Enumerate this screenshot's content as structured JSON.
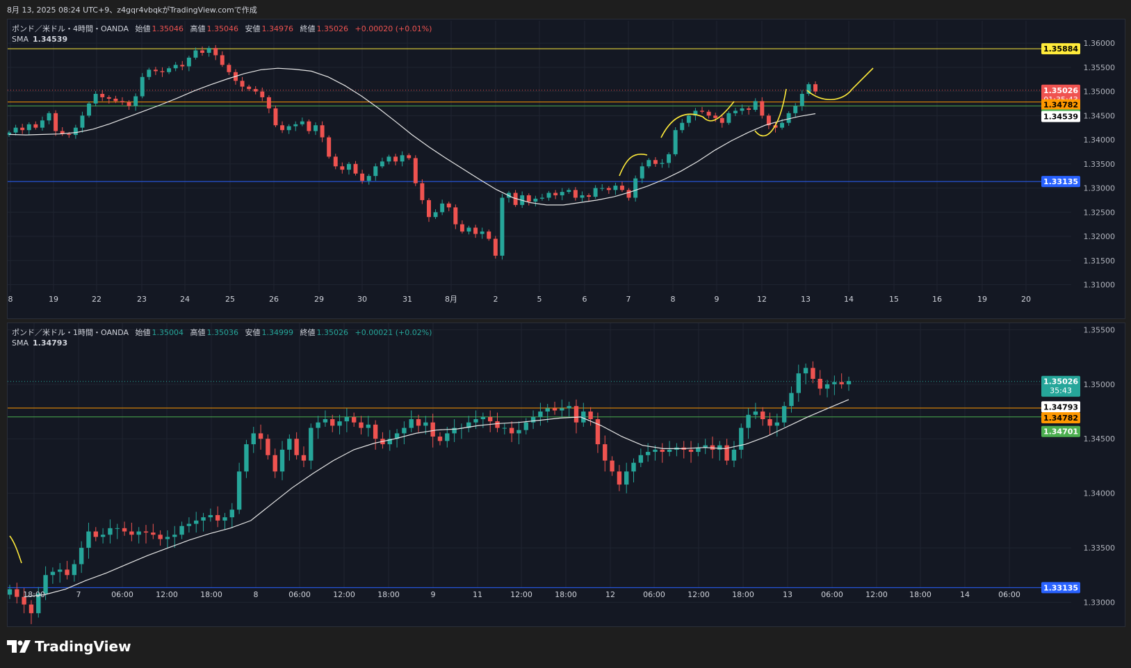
{
  "header": {
    "caption": "8月 13, 2025 08:24 UTC+9、z4gqr4vbqkがTradingView.comで作成"
  },
  "brand": {
    "name": "TradingView"
  },
  "colors": {
    "up": "#26a69a",
    "down": "#ef5350",
    "bg": "#141823",
    "grid": "#1f2430",
    "sma": "#e8e8e8",
    "yellow": "#ffeb3b",
    "orange": "#ff9800",
    "green": "#4caf50",
    "blue": "#2962ff"
  },
  "chart_data": [
    {
      "type": "candlestick",
      "symbol_line": "ポンド／米ドル・4時間・OANDA",
      "ohlc_labels": {
        "open": "始値",
        "high": "高値",
        "low": "安値",
        "close": "終値"
      },
      "ohlc_values": {
        "open": "1.35046",
        "high": "1.35046",
        "low": "1.34976",
        "close": "1.35026",
        "change": "+0.00020 (+0.01%)"
      },
      "indicator": {
        "name": "SMA",
        "value": "1.34539"
      },
      "price_scale_ticks": [
        "1.36000",
        "1.35500",
        "1.35000",
        "1.34500",
        "1.34000",
        "1.33500",
        "1.33000",
        "1.32500",
        "1.32000",
        "1.31500",
        "1.31000"
      ],
      "ylim": [
        1.3095,
        1.3603
      ],
      "time_labels": [
        "8",
        "19",
        "22",
        "23",
        "24",
        "25",
        "26",
        "29",
        "30",
        "31",
        "8月",
        "2",
        "5",
        "6",
        "7",
        "8",
        "9",
        "12",
        "13",
        "14",
        "15",
        "16",
        "19",
        "20"
      ],
      "horizontal_lines": [
        {
          "price": 1.35884,
          "color": "#ffeb3b",
          "label": "1.35884"
        },
        {
          "price": 1.34782,
          "color": "#ff9800",
          "label": "1.34782"
        },
        {
          "price": 1.34701,
          "color": "#4caf50",
          "label": "1.34701"
        },
        {
          "price": 1.33135,
          "color": "#2962ff",
          "label": "1.33135"
        }
      ],
      "last_price": {
        "price": 1.35026,
        "label": "1.35026",
        "countdown": "01:35:43"
      },
      "sma_tag": {
        "price": 1.34539,
        "label": "1.34539"
      },
      "closes": [
        1.3415,
        1.3425,
        1.342,
        1.3432,
        1.3425,
        1.344,
        1.3455,
        1.3418,
        1.3412,
        1.341,
        1.3425,
        1.345,
        1.3475,
        1.3495,
        1.3488,
        1.3485,
        1.348,
        1.3478,
        1.347,
        1.349,
        1.353,
        1.3545,
        1.3542,
        1.354,
        1.3548,
        1.3555,
        1.3552,
        1.357,
        1.3585,
        1.358,
        1.359,
        1.3575,
        1.3555,
        1.354,
        1.3522,
        1.351,
        1.3505,
        1.35,
        1.3488,
        1.3465,
        1.343,
        1.342,
        1.3428,
        1.3432,
        1.3438,
        1.3418,
        1.343,
        1.3405,
        1.3365,
        1.3345,
        1.3338,
        1.335,
        1.333,
        1.3315,
        1.3325,
        1.3345,
        1.3355,
        1.3365,
        1.3355,
        1.3368,
        1.3362,
        1.331,
        1.3275,
        1.324,
        1.325,
        1.3268,
        1.326,
        1.3225,
        1.321,
        1.3218,
        1.3205,
        1.321,
        1.3195,
        1.316,
        1.328,
        1.329,
        1.3265,
        1.3285,
        1.3272,
        1.3278,
        1.328,
        1.329,
        1.3285,
        1.3292,
        1.3296,
        1.328,
        1.3285,
        1.3282,
        1.33,
        1.33,
        1.3296,
        1.3305,
        1.3296,
        1.328,
        1.332,
        1.3345,
        1.3358,
        1.335,
        1.3352,
        1.337,
        1.342,
        1.3435,
        1.345,
        1.346,
        1.3458,
        1.345,
        1.3445,
        1.3435,
        1.3455,
        1.346,
        1.3465,
        1.3462,
        1.348,
        1.345,
        1.343,
        1.3425,
        1.3435,
        1.3455,
        1.347,
        1.3495,
        1.3515,
        1.35
      ],
      "sma_values": [
        1.3411,
        1.341,
        1.3411,
        1.3412,
        1.3415,
        1.3422,
        1.3433,
        1.3446,
        1.3459,
        1.3472,
        1.3486,
        1.3501,
        1.3514,
        1.3526,
        1.3537,
        1.3545,
        1.3548,
        1.3546,
        1.3542,
        1.353,
        1.3512,
        1.349,
        1.3465,
        1.3438,
        1.341,
        1.3385,
        1.3362,
        1.334,
        1.3318,
        1.3297,
        1.328,
        1.327,
        1.3265,
        1.3265,
        1.327,
        1.3275,
        1.3282,
        1.3292,
        1.3304,
        1.3318,
        1.3335,
        1.3355,
        1.3378,
        1.3398,
        1.3415,
        1.343,
        1.344,
        1.3448,
        1.3454
      ]
    },
    {
      "type": "candlestick",
      "symbol_line": "ポンド／米ドル・1時間・OANDA",
      "ohlc_labels": {
        "open": "始値",
        "high": "高値",
        "low": "安値",
        "close": "終値"
      },
      "ohlc_values": {
        "open": "1.35004",
        "high": "1.35036",
        "low": "1.34999",
        "close": "1.35026",
        "change": "+0.00021 (+0.02%)"
      },
      "indicator": {
        "name": "SMA",
        "value": "1.34793"
      },
      "price_scale_ticks": [
        "1.35500",
        "1.35000",
        "1.34500",
        "1.34000",
        "1.33500",
        "1.33000"
      ],
      "ylim": [
        1.3278,
        1.3556
      ],
      "time_labels": [
        "18:00",
        "7",
        "06:00",
        "12:00",
        "18:00",
        "8",
        "06:00",
        "12:00",
        "18:00",
        "9",
        "11",
        "12:00",
        "18:00",
        "12",
        "06:00",
        "12:00",
        "18:00",
        "13",
        "06:00",
        "12:00",
        "18:00",
        "14",
        "06:00"
      ],
      "horizontal_lines": [
        {
          "price": 1.34782,
          "color": "#ff9800",
          "label": "1.34782"
        },
        {
          "price": 1.34701,
          "color": "#4caf50",
          "label": "1.34701"
        },
        {
          "price": 1.33135,
          "color": "#2962ff",
          "label": "1.33135"
        }
      ],
      "last_price": {
        "price": 1.35026,
        "label": "1.35026",
        "countdown": "35:43"
      },
      "sma_tag": {
        "price": 1.34793,
        "label": "1.34793"
      },
      "closes": [
        1.3312,
        1.3305,
        1.3298,
        1.329,
        1.3308,
        1.3325,
        1.3328,
        1.333,
        1.3325,
        1.3335,
        1.335,
        1.3365,
        1.336,
        1.3362,
        1.3368,
        1.3368,
        1.3365,
        1.3362,
        1.3365,
        1.3364,
        1.3362,
        1.3358,
        1.336,
        1.3362,
        1.337,
        1.3372,
        1.3375,
        1.3378,
        1.338,
        1.3375,
        1.3378,
        1.3385,
        1.342,
        1.3445,
        1.3455,
        1.345,
        1.3435,
        1.342,
        1.344,
        1.345,
        1.3435,
        1.343,
        1.346,
        1.3465,
        1.3468,
        1.3462,
        1.3466,
        1.347,
        1.3465,
        1.346,
        1.3463,
        1.345,
        1.3445,
        1.345,
        1.3455,
        1.346,
        1.3468,
        1.3462,
        1.3465,
        1.3452,
        1.3448,
        1.3455,
        1.346,
        1.346,
        1.3465,
        1.3468,
        1.347,
        1.3466,
        1.346,
        1.346,
        1.3455,
        1.3458,
        1.3465,
        1.347,
        1.3475,
        1.3478,
        1.3476,
        1.3478,
        1.348,
        1.3465,
        1.3475,
        1.3468,
        1.3445,
        1.343,
        1.342,
        1.3408,
        1.342,
        1.3428,
        1.3435,
        1.3438,
        1.344,
        1.3438,
        1.344,
        1.3442,
        1.344,
        1.3438,
        1.3442,
        1.3444,
        1.344,
        1.3444,
        1.343,
        1.344,
        1.346,
        1.3472,
        1.3475,
        1.3468,
        1.3462,
        1.3465,
        1.348,
        1.3492,
        1.351,
        1.3515,
        1.3505,
        1.3496,
        1.35,
        1.3502,
        1.35,
        1.3503
      ],
      "sma_values": [
        1.3305,
        1.3307,
        1.3312,
        1.332,
        1.3327,
        1.3335,
        1.3343,
        1.335,
        1.3357,
        1.3363,
        1.3368,
        1.3375,
        1.339,
        1.3405,
        1.3418,
        1.343,
        1.344,
        1.3446,
        1.345,
        1.3455,
        1.3458,
        1.3459,
        1.3462,
        1.3464,
        1.3465,
        1.3467,
        1.3469,
        1.347,
        1.3462,
        1.3452,
        1.3444,
        1.3441,
        1.3441,
        1.3442,
        1.3441,
        1.3445,
        1.3452,
        1.3461,
        1.347,
        1.3478,
        1.3486
      ]
    }
  ]
}
